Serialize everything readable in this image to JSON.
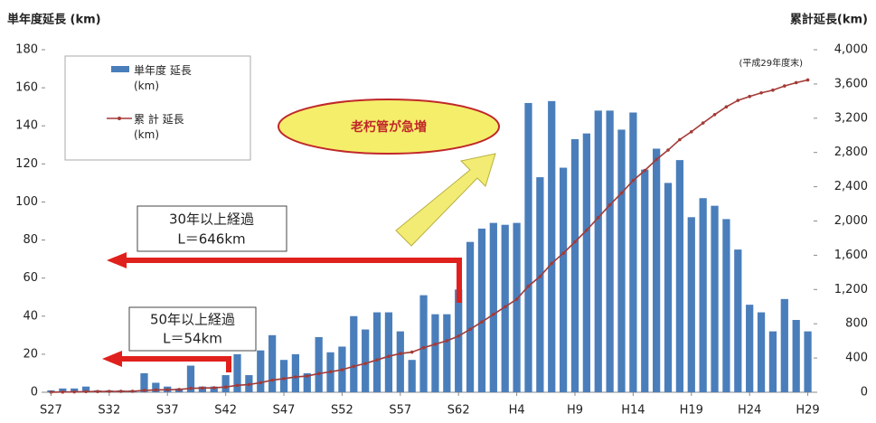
{
  "chart_data": {
    "type": "bar_line",
    "y_label": "単年度延長 (km)",
    "y2_label": "累計延長(km)",
    "categories": [
      "S27",
      null,
      null,
      null,
      null,
      "S32",
      null,
      null,
      null,
      null,
      "S37",
      null,
      null,
      null,
      null,
      "S42",
      null,
      null,
      null,
      null,
      "S47",
      null,
      null,
      null,
      null,
      "S52",
      null,
      null,
      null,
      null,
      "S57",
      null,
      null,
      null,
      null,
      "S62",
      null,
      null,
      null,
      null,
      "H4",
      null,
      null,
      null,
      null,
      "H9",
      null,
      null,
      null,
      null,
      "H14",
      null,
      null,
      null,
      null,
      "H19",
      null,
      null,
      null,
      null,
      "H24",
      null,
      null,
      null,
      null,
      "H29"
    ],
    "series": [
      {
        "name": "単年度 延長(km)",
        "color": "#4a7ebb",
        "type": "bar",
        "values": [
          1,
          2,
          2,
          3,
          1,
          1,
          1,
          1,
          10,
          5,
          3,
          2,
          14,
          3,
          3,
          9,
          20,
          9,
          22,
          30,
          17,
          20,
          10,
          29,
          21,
          24,
          40,
          33,
          42,
          42,
          32,
          17,
          51,
          41,
          41,
          54,
          79,
          86,
          89,
          88,
          89,
          152,
          113,
          153,
          118,
          133,
          136,
          148,
          148,
          138,
          147,
          117,
          128,
          110,
          122,
          92,
          102,
          98,
          91,
          75,
          46,
          42,
          32,
          49,
          38,
          32
        ]
      },
      {
        "name": "累 計 延長(km)",
        "color": "#a33a36",
        "type": "line",
        "axis": "y2",
        "values": [
          1,
          3,
          5,
          8,
          9,
          10,
          11,
          12,
          22,
          27,
          30,
          32,
          46,
          49,
          52,
          61,
          81,
          90,
          112,
          142,
          159,
          179,
          189,
          218,
          239,
          263,
          303,
          336,
          378,
          420,
          452,
          469,
          520,
          561,
          602,
          656,
          735,
          821,
          910,
          998,
          1087,
          1239,
          1352,
          1505,
          1623,
          1756,
          1892,
          2040,
          2188,
          2326,
          2473,
          2590,
          2718,
          2828,
          2950,
          3042,
          3144,
          3242,
          3333,
          3408,
          3454,
          3496,
          3528,
          3577,
          3615,
          3647
        ]
      }
    ],
    "ylim": [
      0,
      180
    ],
    "yticks": [
      0,
      20,
      40,
      60,
      80,
      100,
      120,
      140,
      160,
      180
    ],
    "y2lim": [
      0,
      4000
    ],
    "y2ticks": [
      0,
      400,
      800,
      {
        "value": 1200,
        "label": "1,200"
      },
      {
        "value": 1600,
        "label": "1,600"
      },
      {
        "value": 2000,
        "label": "2,000"
      },
      {
        "value": 2400,
        "label": "2,400"
      },
      {
        "value": 2800,
        "label": "2,800"
      },
      {
        "value": 3200,
        "label": "3,200"
      },
      {
        "value": 3600,
        "label": "3,600"
      },
      {
        "value": 4000,
        "label": "4,000"
      }
    ],
    "annotations": [
      "(平成29年度末)",
      "老朽管が急増",
      "30年以上経過",
      "L＝646km",
      "50年以上経過",
      "L＝54km"
    ]
  }
}
